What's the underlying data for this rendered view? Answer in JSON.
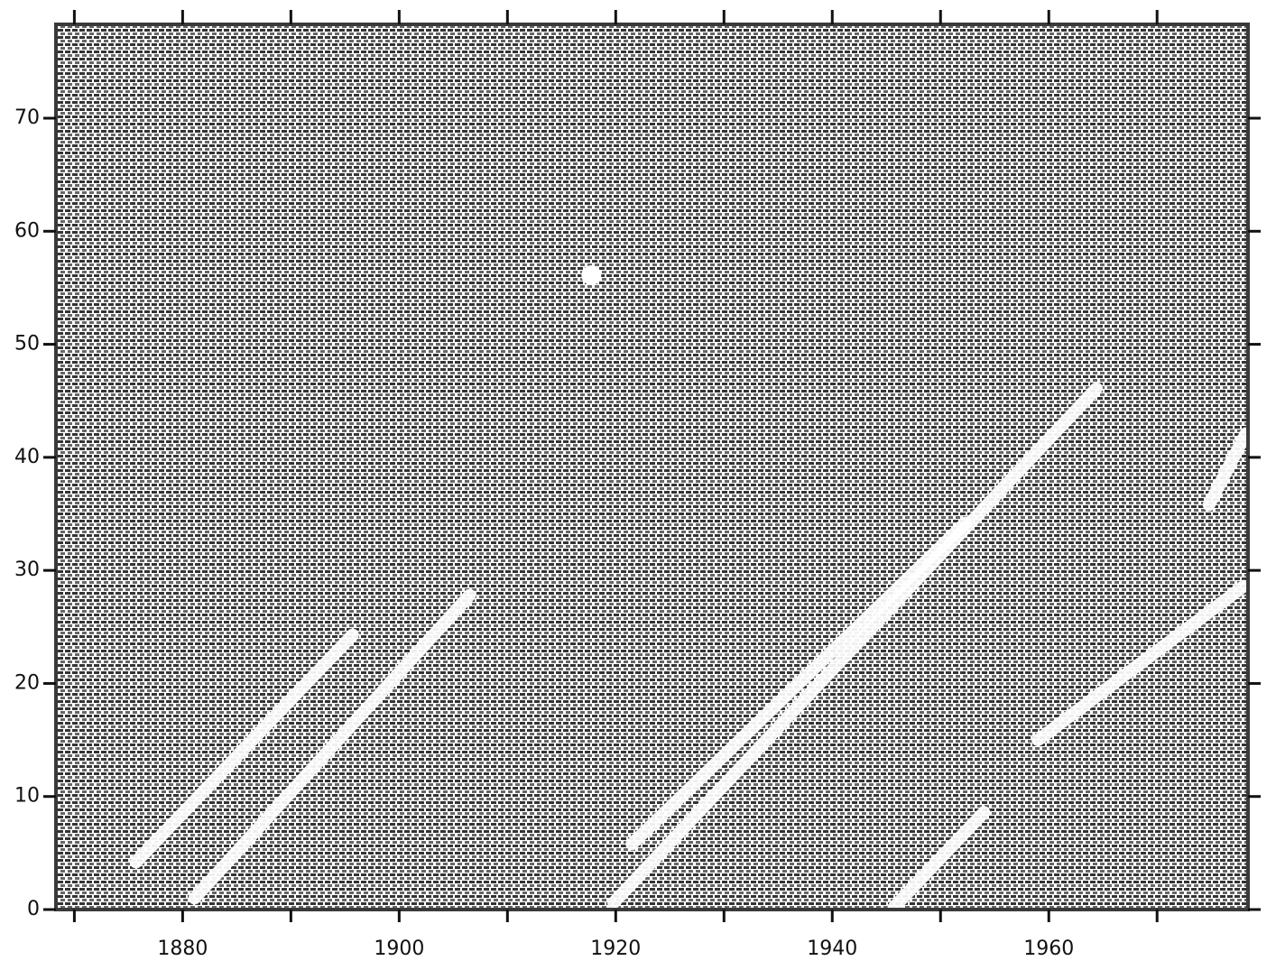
{
  "chart_data": {
    "type": "lexis",
    "xlim": [
      1868.3,
      1978.4
    ],
    "ylim": [
      0,
      78.3
    ],
    "xticks": [
      1880,
      1900,
      1920,
      1940,
      1960
    ],
    "xminorticks": [
      1870,
      1890,
      1910,
      1930,
      1950,
      1970
    ],
    "yticks": [
      0,
      10,
      20,
      30,
      40,
      50,
      60,
      70
    ],
    "color": "#3a3a3a",
    "bands": [
      {
        "x": [
          1875.7,
          1895.7
        ],
        "y": [
          4.2,
          24.3
        ]
      },
      {
        "x": [
          1881.1,
          1906.5
        ],
        "y": [
          1.0,
          27.8
        ]
      },
      {
        "x": [
          1919.8,
          1964.4
        ],
        "y": [
          0.6,
          46.1
        ]
      },
      {
        "x": [
          1921.5,
          1952.3
        ],
        "y": [
          5.8,
          34.2
        ]
      },
      {
        "x": [
          1945.7,
          1954.0
        ],
        "y": [
          0.2,
          8.6
        ]
      },
      {
        "x": [
          1959.0,
          1978.0
        ],
        "y": [
          15.0,
          28.6
        ]
      },
      {
        "x": [
          1974.8,
          1978.2
        ],
        "y": [
          35.8,
          42.1
        ]
      }
    ],
    "spots": [
      {
        "x": 1917.75,
        "y": 56.1
      }
    ]
  }
}
